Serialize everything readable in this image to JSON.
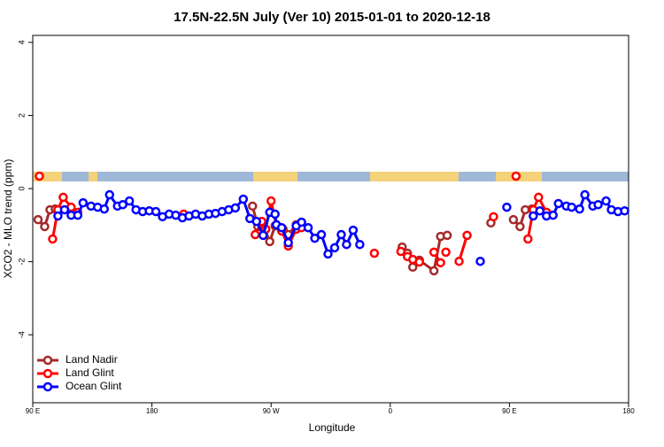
{
  "chart_data": {
    "type": "line",
    "title": "17.5N-22.5N July (Ver 10)   2015-01-01 to 2020-12-18",
    "x_label": "Longitude",
    "y_label": "XCO2 - MLO trend (ppm)",
    "xlim": [
      90,
      540
    ],
    "ylim": [
      -5.86,
      4.19
    ],
    "xticks": [
      {
        "value": 90,
        "label": "90 E"
      },
      180,
      {
        "value": 270,
        "label": "90 W"
      },
      {
        "value": 360,
        "label": "0"
      },
      {
        "value": 450,
        "label": "90 E"
      },
      180
    ],
    "yticks": [
      -4,
      -2,
      0,
      2,
      4
    ],
    "legend": "bottom-left",
    "series": [
      {
        "name": "Land Nadir",
        "color": "#a52a2a",
        "x": [
          94,
          99,
          103,
          107,
          null,
          256,
          260,
          265,
          269,
          273,
          279,
          283,
          289,
          null,
          369,
          373,
          377,
          382,
          393,
          398,
          403,
          null,
          436,
          null,
          453,
          458,
          462,
          467
        ],
        "values": [
          -0.85,
          -1.04,
          -0.58,
          -0.56,
          null,
          -0.48,
          -1.04,
          -1.09,
          -1.45,
          -1.02,
          -1.11,
          -1.26,
          -0.99,
          null,
          -1.6,
          -1.77,
          -2.15,
          -1.96,
          -2.25,
          -1.31,
          -1.28,
          null,
          -0.94,
          null,
          -0.85,
          -1.04,
          -0.58,
          -0.56
        ]
      },
      {
        "name": "Land Glint",
        "color": "#ff0000",
        "x": [
          95,
          null,
          105,
          109,
          113,
          119,
          124,
          null,
          204,
          null,
          258,
          263,
          266,
          270,
          274,
          278,
          283,
          289,
          293,
          null,
          348,
          null,
          368,
          373,
          377,
          382,
          null,
          393,
          398,
          null,
          402,
          null,
          412,
          418,
          null,
          438,
          null,
          455,
          null,
          464,
          468,
          472,
          478
        ],
        "values": [
          0.34,
          null,
          -1.38,
          -0.58,
          -0.24,
          -0.51,
          -0.65,
          null,
          -0.7,
          null,
          -1.26,
          -0.9,
          -1.11,
          -0.34,
          -0.99,
          -1.16,
          -1.57,
          -1.11,
          -1.07,
          null,
          -1.77,
          null,
          -1.72,
          -1.86,
          -1.94,
          -2.01,
          null,
          -1.74,
          -2.03,
          null,
          -1.74,
          null,
          -1.99,
          -1.28,
          null,
          -0.77,
          null,
          0.34,
          null,
          -1.38,
          -0.58,
          -0.24,
          -0.65
        ]
      },
      {
        "name": "Ocean Glint",
        "color": "#0000ff",
        "x": [
          109,
          114,
          119,
          124,
          128,
          134,
          139,
          144,
          148,
          154,
          158,
          163,
          168,
          173,
          178,
          183,
          188,
          193,
          198,
          203,
          208,
          213,
          218,
          223,
          228,
          233,
          238,
          243,
          249,
          254,
          259,
          264,
          269,
          273,
          274,
          278,
          283,
          289,
          293,
          298,
          303,
          308,
          313,
          318,
          323,
          327,
          332,
          337,
          null,
          428,
          null,
          448,
          null,
          468,
          473,
          478,
          483,
          487,
          493,
          497,
          503,
          507,
          513,
          517,
          523,
          527,
          532,
          537
        ],
        "values": [
          -0.75,
          -0.58,
          -0.73,
          -0.73,
          -0.39,
          -0.48,
          -0.51,
          -0.56,
          -0.17,
          -0.48,
          -0.44,
          -0.34,
          -0.58,
          -0.63,
          -0.61,
          -0.63,
          -0.77,
          -0.7,
          -0.73,
          -0.8,
          -0.75,
          -0.7,
          -0.75,
          -0.7,
          -0.68,
          -0.63,
          -0.58,
          -0.53,
          -0.29,
          -0.82,
          -0.9,
          -1.28,
          -0.65,
          -0.7,
          -0.99,
          -1.07,
          -1.48,
          -1.02,
          -0.92,
          -1.07,
          -1.36,
          -1.26,
          -1.79,
          -1.62,
          -1.26,
          -1.53,
          -1.14,
          -1.53,
          null,
          -1.99,
          null,
          -0.51,
          null,
          -0.75,
          -0.61,
          -0.75,
          -0.73,
          -0.41,
          -0.48,
          -0.51,
          -0.56,
          -0.17,
          -0.48,
          -0.44,
          -0.34,
          -0.58,
          -0.63,
          -0.61
        ]
      }
    ]
  }
}
